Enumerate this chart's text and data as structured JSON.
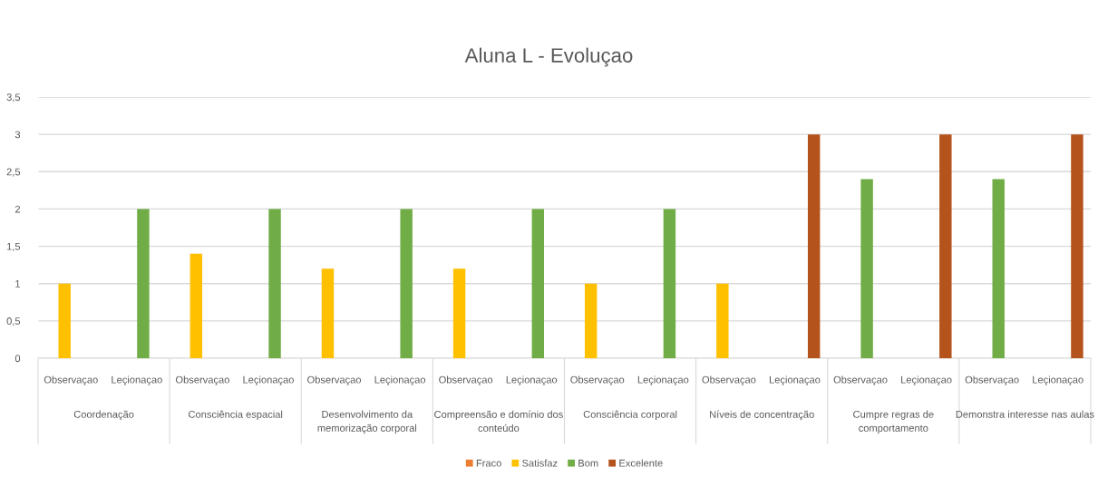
{
  "chart_data": {
    "type": "bar",
    "title": "Aluna L - Evoluçao",
    "categories": [
      "Observaçao",
      "Leçionaçao",
      "Observaçao",
      "Leçionaçao",
      "Observaçao",
      "Leçionaçao",
      "Observaçao",
      "Leçionaçao",
      "Observaçao",
      "Leçionaçao",
      "Observaçao",
      "Leçionaçao",
      "Observaçao",
      "Leçionaçao",
      "Observaçao",
      "Leçionaçao"
    ],
    "series": [
      {
        "name": "Fraco",
        "color": "#ed7d31",
        "values": [
          null,
          null,
          null,
          null,
          null,
          null,
          null,
          null,
          null,
          null,
          null,
          null,
          null,
          null,
          null,
          null
        ]
      },
      {
        "name": "Satisfaz",
        "color": "#ffc000",
        "values": [
          1,
          null,
          1.4,
          null,
          1.2,
          null,
          1.2,
          null,
          1,
          null,
          1,
          null,
          null,
          null,
          null,
          null
        ]
      },
      {
        "name": "Bom",
        "color": "#70ad47",
        "values": [
          null,
          2,
          null,
          2,
          null,
          2,
          null,
          2,
          null,
          2,
          null,
          null,
          2.4,
          null,
          2.4,
          null
        ]
      },
      {
        "name": "Excelente",
        "color": "#b5531c",
        "values": [
          null,
          null,
          null,
          null,
          null,
          null,
          null,
          null,
          null,
          null,
          null,
          3,
          null,
          3,
          null,
          3
        ]
      }
    ],
    "annotations": [
      "Coordenação",
      "Consciência espacial",
      "Desenvolvimento da\nmemorização corporal",
      "Compreensão e domínio dos\nconteúdo",
      "Consciência corporal",
      "Níveis de concentração",
      "Cumpre regras de\ncomportamento",
      "Demonstra interesse nas aulas"
    ],
    "ylim": [
      0,
      3.5
    ],
    "yticks": [
      0,
      {
        "value": 0.5,
        "label": "0,5"
      },
      1,
      {
        "value": 1.5,
        "label": "1,5"
      },
      2,
      {
        "value": 2.5,
        "label": "2,5"
      },
      3,
      {
        "value": 3.5,
        "label": "3,5"
      }
    ],
    "grid": "y",
    "legend": "bottom"
  }
}
